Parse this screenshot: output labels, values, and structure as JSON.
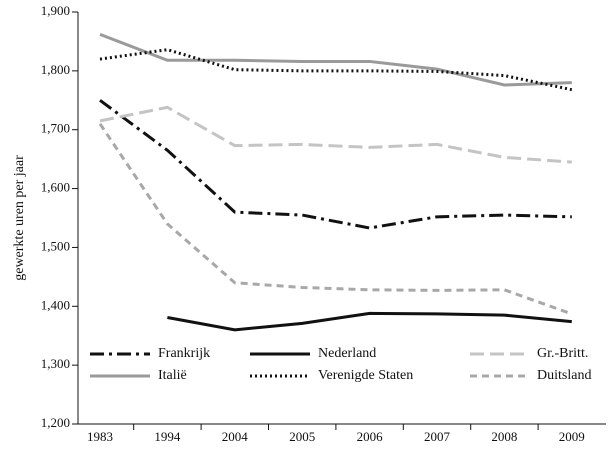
{
  "chart_data": {
    "type": "line",
    "ylabel": "gewerkte uren per jaar",
    "categories": [
      "1983",
      "1994",
      "2004",
      "2005",
      "2006",
      "2007",
      "2008",
      "2009"
    ],
    "ylim": [
      1200,
      1900
    ],
    "yticks": [
      {
        "value": 1200,
        "label": "1,200"
      },
      {
        "value": 1300,
        "label": "1,300"
      },
      {
        "value": 1400,
        "label": "1,400"
      },
      {
        "value": 1500,
        "label": "1,500"
      },
      {
        "value": 1600,
        "label": "1,600"
      },
      {
        "value": 1700,
        "label": "1,700"
      },
      {
        "value": 1800,
        "label": "1,800"
      },
      {
        "value": 1900,
        "label": "1,900"
      }
    ],
    "grid": false,
    "series": [
      {
        "name": "Frankrijk",
        "color": "#111111",
        "dash": "14 5 3 5",
        "values": [
          1750,
          1665,
          1560,
          1555,
          1533,
          1552,
          1555,
          1552
        ]
      },
      {
        "name": "Nederland",
        "color": "#111111",
        "dash": "none",
        "values": [
          null,
          1381,
          1360,
          1371,
          1388,
          1387,
          1385,
          1374
        ]
      },
      {
        "name": "Gr.-Britt.",
        "color": "#c4c4c4",
        "dash": "14 6",
        "values": [
          1715,
          1738,
          1673,
          1675,
          1670,
          1675,
          1653,
          1645
        ]
      },
      {
        "name": "Italië",
        "color": "#9a9a9a",
        "dash": "none",
        "values": [
          1862,
          1818,
          1818,
          1816,
          1816,
          1803,
          1776,
          1780
        ]
      },
      {
        "name": "Verenigde Staten",
        "color": "#111111",
        "dash": "2 3",
        "values": [
          1820,
          1836,
          1802,
          1800,
          1800,
          1799,
          1792,
          1768
        ]
      },
      {
        "name": "Duitsland",
        "color": "#a8a8a8",
        "dash": "7 5",
        "values": [
          1710,
          1540,
          1440,
          1432,
          1428,
          1427,
          1428,
          1387
        ]
      }
    ]
  }
}
